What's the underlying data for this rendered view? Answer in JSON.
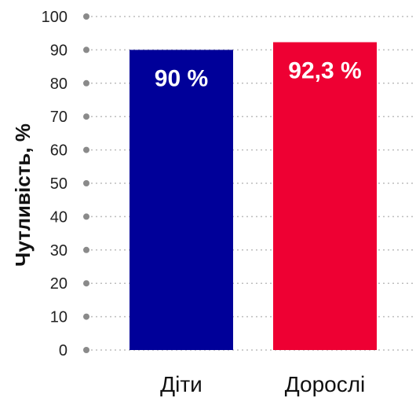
{
  "chart_data": {
    "type": "bar",
    "categories": [
      "Діти",
      "Дорослі"
    ],
    "values": [
      90,
      92.3
    ],
    "data_labels": [
      "90 %",
      "92,3 %"
    ],
    "colors": [
      "#000099",
      "#ee0033"
    ],
    "ylabel": "Чутливість, %",
    "ylim": [
      0,
      100
    ],
    "yticks": [
      0,
      10,
      20,
      30,
      40,
      50,
      60,
      70,
      80,
      90,
      100
    ],
    "ytick_labels": [
      "0",
      "10",
      "20",
      "30",
      "40",
      "50",
      "60",
      "70",
      "80",
      "90",
      "100"
    ],
    "grid": true,
    "legend": "none"
  }
}
